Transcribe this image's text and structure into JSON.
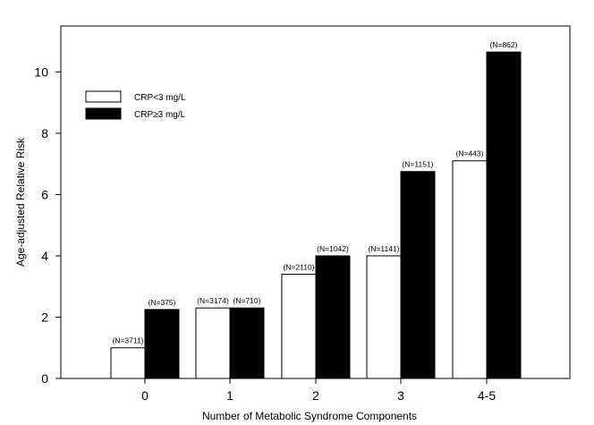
{
  "chart_data": {
    "type": "bar",
    "title": "",
    "xlabel": "Number of Metabolic Syndrome Components",
    "ylabel": "Age-adjusted Relative Risk",
    "ylim": [
      0,
      11.5
    ],
    "yticks": [
      0,
      2,
      4,
      6,
      8,
      10
    ],
    "grid": false,
    "legend_position": "top-left",
    "categories": [
      "0",
      "1",
      "2",
      "3",
      "4-5"
    ],
    "series": [
      {
        "name": "CRP<3 mg/L",
        "color": "#ffffff",
        "values": [
          1.0,
          2.3,
          3.4,
          4.0,
          7.1
        ],
        "labels": [
          "(N=3711)",
          "(N=3174)",
          "(N=2110)",
          "(N=1141)",
          "(N=443)"
        ]
      },
      {
        "name": "CRP≥3 mg/L",
        "color": "#000000",
        "values": [
          2.25,
          2.3,
          4.0,
          6.75,
          10.65
        ],
        "labels": [
          "(N=375)",
          "(N=710)",
          "(N=1042)",
          "(N=1151)",
          "(N=862)"
        ]
      }
    ]
  }
}
